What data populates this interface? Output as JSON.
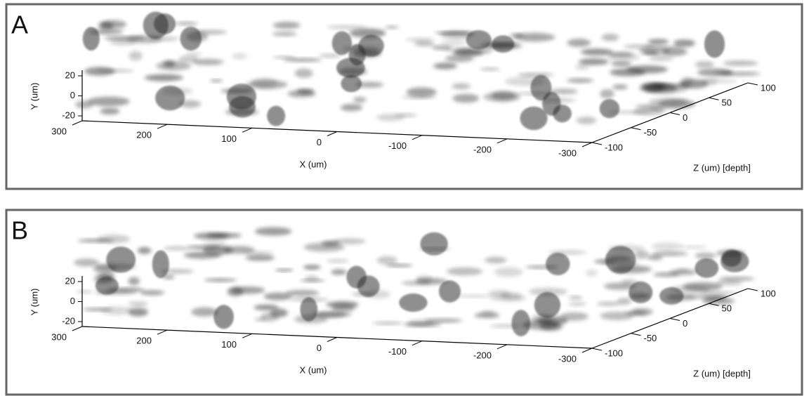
{
  "panels": [
    {
      "label": "A",
      "x_label": "X (um)",
      "y_label": "Y (um)",
      "z_label": "Z (um) [depth]",
      "xticks": [
        300,
        200,
        100,
        0,
        -100,
        -200,
        -300
      ],
      "yticks": [
        20,
        0,
        -20
      ],
      "zticks": [
        -100,
        -50,
        0,
        50,
        100
      ]
    },
    {
      "label": "B",
      "x_label": "X (um)",
      "y_label": "Y (um)",
      "z_label": "Z (um) [depth]",
      "xticks": [
        300,
        200,
        100,
        0,
        -100,
        -200,
        -300
      ],
      "yticks": [
        20,
        0,
        -20
      ],
      "zticks": [
        -100,
        -50,
        0,
        50,
        100
      ]
    }
  ]
}
